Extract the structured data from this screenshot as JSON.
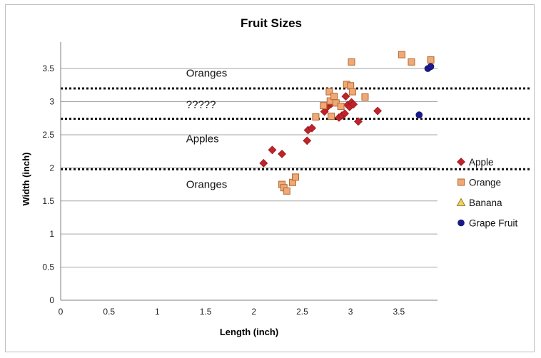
{
  "chart_data": {
    "type": "scatter",
    "title": "Fruit Sizes",
    "xlabel": "Length (inch)",
    "ylabel": "Width (inch)",
    "xlim": [
      0,
      3.9
    ],
    "ylim": [
      0,
      3.9
    ],
    "xticks": [
      0,
      0.5,
      1,
      1.5,
      2,
      2.5,
      3,
      3.5
    ],
    "xtick_labels": [
      "0",
      "0.5",
      "1",
      "1.5",
      "2",
      "2.5",
      "3",
      "3.5"
    ],
    "yticks": [
      0,
      0.5,
      1,
      1.5,
      2,
      2.5,
      3,
      3.5
    ],
    "ytick_labels": [
      "0",
      "0.5",
      "1",
      "1.5",
      "2",
      "2.5",
      "3",
      "3.5"
    ],
    "grid": "horizontal",
    "legend_position": "right",
    "series": [
      {
        "name": "Apple",
        "marker": "diamond",
        "color": "#c0232a",
        "points": [
          [
            2.1,
            2.07
          ],
          [
            2.19,
            2.27
          ],
          [
            2.29,
            2.21
          ],
          [
            2.55,
            2.41
          ],
          [
            2.56,
            2.57
          ],
          [
            2.6,
            2.6
          ],
          [
            2.73,
            2.85
          ],
          [
            2.76,
            2.92
          ],
          [
            2.8,
            2.97
          ],
          [
            2.88,
            2.76
          ],
          [
            2.91,
            2.79
          ],
          [
            2.94,
            2.82
          ],
          [
            2.95,
            3.08
          ],
          [
            2.97,
            2.95
          ],
          [
            2.99,
            2.92
          ],
          [
            3.01,
            2.99
          ],
          [
            3.03,
            2.96
          ],
          [
            3.08,
            2.7
          ],
          [
            3.28,
            2.86
          ]
        ]
      },
      {
        "name": "Orange",
        "marker": "square",
        "color": "#f0a878",
        "points": [
          [
            2.29,
            1.75
          ],
          [
            2.31,
            1.7
          ],
          [
            2.34,
            1.65
          ],
          [
            2.4,
            1.78
          ],
          [
            2.43,
            1.86
          ],
          [
            2.64,
            2.77
          ],
          [
            2.72,
            2.94
          ],
          [
            2.78,
            3.15
          ],
          [
            2.79,
            3.01
          ],
          [
            2.8,
            2.78
          ],
          [
            2.83,
            3.08
          ],
          [
            2.85,
            2.98
          ],
          [
            2.9,
            2.93
          ],
          [
            2.96,
            3.26
          ],
          [
            3.0,
            3.24
          ],
          [
            3.01,
            3.6
          ],
          [
            3.02,
            3.15
          ],
          [
            3.15,
            3.07
          ],
          [
            3.53,
            3.71
          ],
          [
            3.63,
            3.6
          ],
          [
            3.83,
            3.63
          ]
        ]
      },
      {
        "name": "Banana",
        "marker": "triangle",
        "color": "#f2d36b",
        "points": []
      },
      {
        "name": "Grape Fruit",
        "marker": "circle",
        "color": "#1a1a8c",
        "points": [
          [
            3.71,
            2.8
          ],
          [
            3.8,
            3.5
          ],
          [
            3.83,
            3.53
          ]
        ]
      }
    ],
    "reference_lines": [
      {
        "axis": "y",
        "value": 3.2,
        "style": "dotted"
      },
      {
        "axis": "y",
        "value": 2.74,
        "style": "dotted"
      },
      {
        "axis": "y",
        "value": 1.98,
        "style": "dotted"
      }
    ],
    "region_labels": [
      {
        "text": "Oranges",
        "x": 2.0,
        "y": 3.43
      },
      {
        "text": "?????",
        "x": 2.0,
        "y": 2.96
      },
      {
        "text": "Apples",
        "x": 2.0,
        "y": 2.44
      },
      {
        "text": "Oranges",
        "x": 2.0,
        "y": 1.75
      }
    ]
  }
}
